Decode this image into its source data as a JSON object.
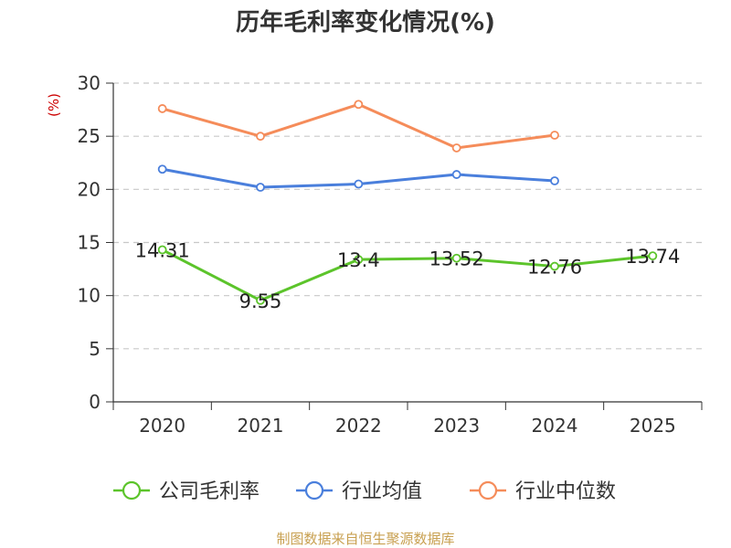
{
  "chart_data": {
    "type": "line",
    "title": "历年毛利率变化情况(%)",
    "ylabel": "(%)",
    "xlabel": "",
    "categories": [
      "2020",
      "2021",
      "2022",
      "2023",
      "2024",
      "2025"
    ],
    "ylim": [
      0,
      30
    ],
    "yticks": [
      0,
      5,
      10,
      15,
      20,
      25,
      30
    ],
    "grid": true,
    "legend_position": "bottom",
    "series": [
      {
        "name": "公司毛利率",
        "color": "#5cc42b",
        "values": [
          14.31,
          9.55,
          13.4,
          13.52,
          12.76,
          13.74
        ],
        "labels": [
          "14.31",
          "9.55",
          "13.4",
          "13.52",
          "12.76",
          "13.74"
        ]
      },
      {
        "name": "行业均值",
        "color": "#4a7fdc",
        "values": [
          21.9,
          20.2,
          20.5,
          21.4,
          20.8,
          null
        ]
      },
      {
        "name": "行业中位数",
        "color": "#f58c5a",
        "values": [
          27.6,
          25.0,
          28.0,
          23.9,
          25.1,
          null
        ]
      }
    ]
  },
  "source": "制图数据来自恒生聚源数据库"
}
